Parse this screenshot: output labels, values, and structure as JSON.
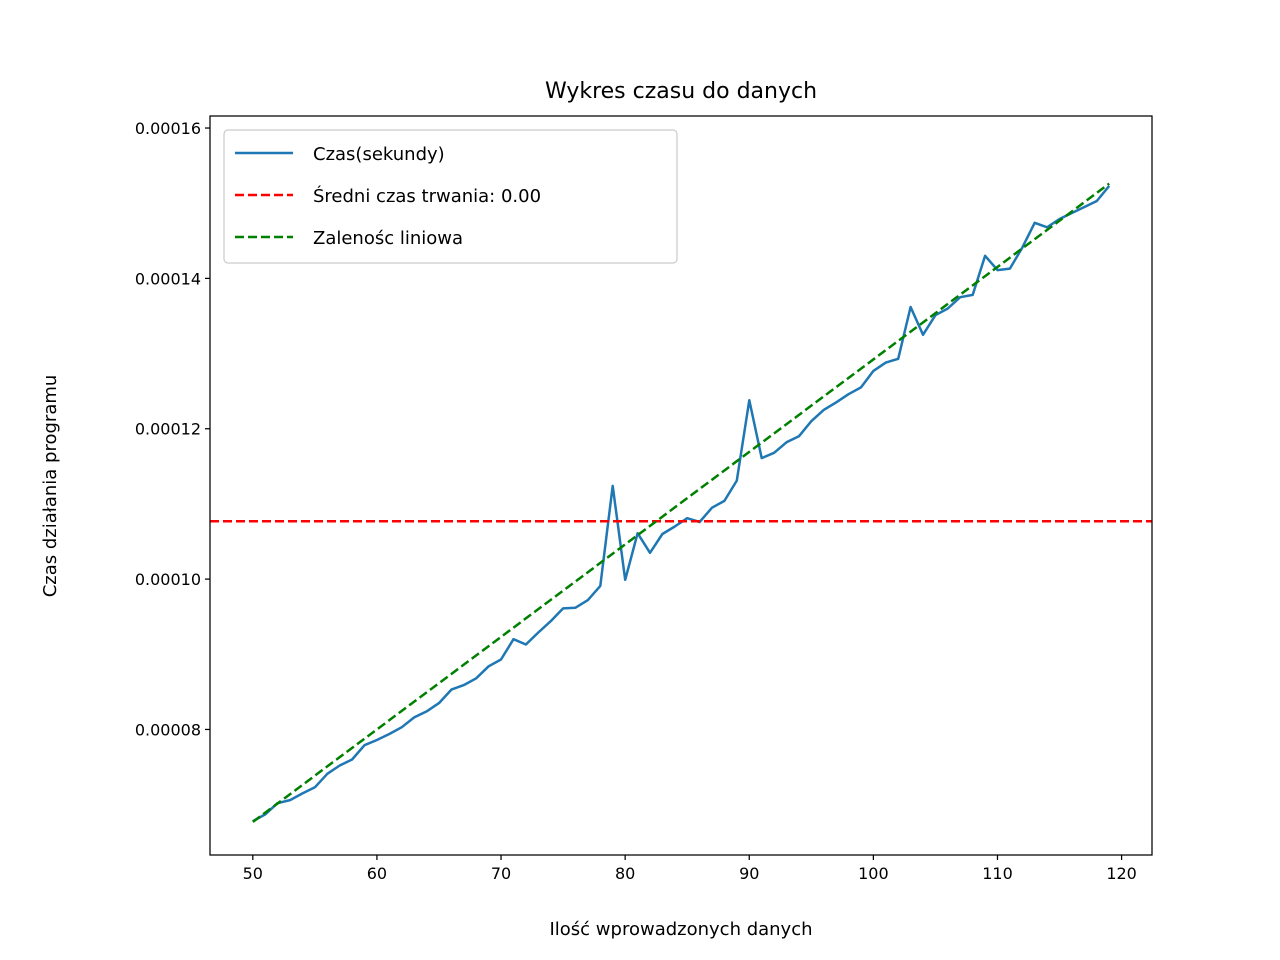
{
  "chart_data": {
    "type": "line",
    "title": "Wykres czasu do danych",
    "xlabel": "Ilość wprowadzonych danych",
    "ylabel": "Czas działania programu",
    "xlim": [
      46.55,
      122.45
    ],
    "ylim": [
      6.33e-05,
      0.0001616
    ],
    "xticks": [
      50,
      60,
      70,
      80,
      90,
      100,
      110,
      120
    ],
    "yticks": [
      8e-05,
      0.0001,
      0.00012,
      0.00014,
      0.00016
    ],
    "ytick_labels": [
      "0.00008",
      "0.00010",
      "0.00012",
      "0.00014",
      "0.00016"
    ],
    "grid": false,
    "legend_position": "top-left",
    "series": [
      {
        "name": "Czas(sekundy)",
        "style": "solid",
        "color": "#1f77b4",
        "x": [
          50,
          51,
          52,
          53,
          54,
          55,
          56,
          57,
          58,
          59,
          60,
          61,
          62,
          63,
          64,
          65,
          66,
          67,
          68,
          69,
          70,
          71,
          72,
          73,
          74,
          75,
          76,
          77,
          78,
          79,
          80,
          81,
          82,
          83,
          84,
          85,
          86,
          87,
          88,
          89,
          90,
          91,
          92,
          93,
          94,
          95,
          96,
          97,
          98,
          99,
          100,
          101,
          102,
          103,
          104,
          105,
          106,
          107,
          108,
          109,
          110,
          111,
          112,
          113,
          114,
          115,
          116,
          117,
          118,
          119
        ],
        "y": [
          6.78e-05,
          6.87e-05,
          7.02e-05,
          7.06e-05,
          7.15e-05,
          7.23e-05,
          7.41e-05,
          7.52e-05,
          7.6e-05,
          7.79e-05,
          7.86e-05,
          7.94e-05,
          8.03e-05,
          8.16e-05,
          8.24e-05,
          8.35e-05,
          8.53e-05,
          8.59e-05,
          8.68e-05,
          8.84e-05,
          8.93e-05,
          9.2e-05,
          9.13e-05,
          9.29e-05,
          9.44e-05,
          9.61e-05,
          9.62e-05,
          9.72e-05,
          9.91e-05,
          0.0001124,
          9.99e-05,
          0.0001061,
          0.0001035,
          0.000106,
          0.000107,
          0.0001081,
          0.0001076,
          0.0001095,
          0.0001104,
          0.0001131,
          0.0001238,
          0.0001161,
          0.0001168,
          0.0001182,
          0.000119,
          0.000121,
          0.0001225,
          0.0001235,
          0.0001246,
          0.0001255,
          0.0001277,
          0.0001288,
          0.0001293,
          0.0001362,
          0.0001325,
          0.0001351,
          0.000136,
          0.0001375,
          0.0001378,
          0.000143,
          0.0001411,
          0.0001413,
          0.0001441,
          0.0001474,
          0.0001468,
          0.0001479,
          0.0001487,
          0.0001495,
          0.0001503,
          0.0001523
        ]
      },
      {
        "name": "Średni czas trwania: 0.00",
        "style": "dashed",
        "color": "#ff0000",
        "y": 0.0001077
      },
      {
        "name": "Zalenośc liniowa",
        "style": "dashed",
        "color": "#008000",
        "x": [
          50,
          119
        ],
        "y": [
          6.77e-05,
          0.0001526
        ]
      }
    ]
  }
}
